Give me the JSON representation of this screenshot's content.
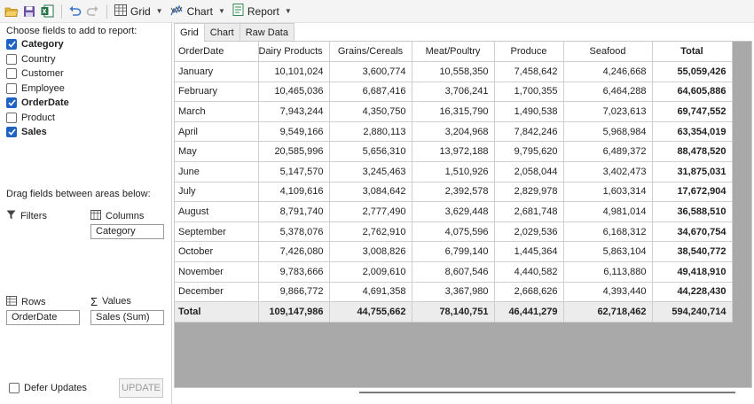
{
  "toolbar": {
    "grid_label": "Grid",
    "chart_label": "Chart",
    "report_label": "Report",
    "icons": [
      "open-folder-icon",
      "save-icon",
      "excel-export-icon",
      "undo-icon",
      "redo-icon",
      "grid-icon",
      "chart-icon",
      "report-icon"
    ]
  },
  "fields_panel": {
    "title": "Choose fields to add to report:",
    "fields": [
      {
        "label": "Category",
        "checked": true
      },
      {
        "label": "Country",
        "checked": false
      },
      {
        "label": "Customer",
        "checked": false
      },
      {
        "label": "Employee",
        "checked": false
      },
      {
        "label": "OrderDate",
        "checked": true
      },
      {
        "label": "Product",
        "checked": false
      },
      {
        "label": "Sales",
        "checked": true
      }
    ],
    "drag_hint": "Drag fields between areas below:",
    "filters_label": "Filters",
    "columns_label": "Columns",
    "columns_value": "Category",
    "rows_label": "Rows",
    "rows_value": "OrderDate",
    "values_label": "Values",
    "values_value": "Sales (Sum)",
    "defer_label": "Defer Updates",
    "update_label": "UPDATE"
  },
  "tabs": [
    "Grid",
    "Chart",
    "Raw Data"
  ],
  "active_tab": "Grid",
  "grid": {
    "headers": [
      "OrderDate",
      "Dairy Products",
      "Grains/Cereals",
      "Meat/Poultry",
      "Produce",
      "Seafood",
      "Total"
    ],
    "rows": [
      [
        "January",
        "10,101,024",
        "3,600,774",
        "10,558,350",
        "7,458,642",
        "4,246,668",
        "55,059,426"
      ],
      [
        "February",
        "10,465,036",
        "6,687,416",
        "3,706,241",
        "1,700,355",
        "6,464,288",
        "64,605,886"
      ],
      [
        "March",
        "7,943,244",
        "4,350,750",
        "16,315,790",
        "1,490,538",
        "7,023,613",
        "69,747,552"
      ],
      [
        "April",
        "9,549,166",
        "2,880,113",
        "3,204,968",
        "7,842,246",
        "5,968,984",
        "63,354,019"
      ],
      [
        "May",
        "20,585,996",
        "5,656,310",
        "13,972,188",
        "9,795,620",
        "6,489,372",
        "88,478,520"
      ],
      [
        "June",
        "5,147,570",
        "3,245,463",
        "1,510,926",
        "2,058,044",
        "3,402,473",
        "31,875,031"
      ],
      [
        "July",
        "4,109,616",
        "3,084,642",
        "2,392,578",
        "2,829,978",
        "1,603,314",
        "17,672,904"
      ],
      [
        "August",
        "8,791,740",
        "2,777,490",
        "3,629,448",
        "2,681,748",
        "4,981,014",
        "36,588,510"
      ],
      [
        "September",
        "5,378,076",
        "2,762,910",
        "4,075,596",
        "2,029,536",
        "6,168,312",
        "34,670,754"
      ],
      [
        "October",
        "7,426,080",
        "3,008,826",
        "6,799,140",
        "1,445,364",
        "5,863,104",
        "38,540,772"
      ],
      [
        "November",
        "9,783,666",
        "2,009,610",
        "8,607,546",
        "4,440,582",
        "6,113,880",
        "49,418,910"
      ],
      [
        "December",
        "9,866,772",
        "4,691,358",
        "3,367,980",
        "2,668,626",
        "4,393,440",
        "44,228,430"
      ]
    ],
    "total_row": [
      "Total",
      "109,147,986",
      "44,755,662",
      "78,140,751",
      "46,441,279",
      "62,718,462",
      "594,240,714"
    ]
  },
  "colors": {
    "accent": "#1e63c4",
    "grid_empty_area": "#a9a9a9",
    "total_row_bg": "#ececec"
  }
}
